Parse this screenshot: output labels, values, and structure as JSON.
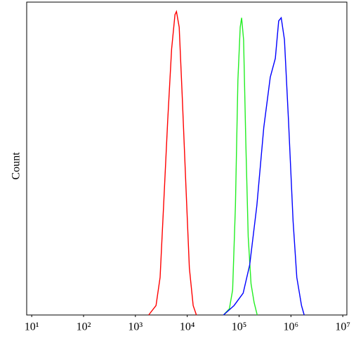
{
  "chart_data": {
    "type": "line",
    "y_label": "Count",
    "xlog": true,
    "xlim": [
      8,
      12000000
    ],
    "ylim": [
      0,
      100
    ],
    "xticks": [
      {
        "value": 10,
        "label": "10¹"
      },
      {
        "value": 100,
        "label": "10²"
      },
      {
        "value": 1000,
        "label": "10³"
      },
      {
        "value": 10000,
        "label": "10⁴"
      },
      {
        "value": 100000,
        "label": "10⁵"
      },
      {
        "value": 1000000,
        "label": "10⁶"
      },
      {
        "value": 10000000,
        "label": "10⁷"
      }
    ],
    "series": [
      {
        "color": "#ff0000",
        "x": [
          1800,
          2500,
          3000,
          3500,
          4200,
          5000,
          5800,
          6200,
          7000,
          8000,
          9500,
          11000,
          13000,
          15000
        ],
        "values": [
          0,
          3,
          12,
          35,
          62,
          85,
          96,
          97,
          92,
          70,
          40,
          15,
          3,
          0
        ]
      },
      {
        "color": "#22ee22",
        "x": [
          50000,
          65000,
          75000,
          85000,
          95000,
          105000,
          112000,
          122000,
          135000,
          150000,
          170000,
          195000,
          224000
        ],
        "values": [
          0,
          2,
          8,
          35,
          75,
          92,
          95,
          88,
          55,
          25,
          10,
          4,
          0
        ]
      },
      {
        "color": "#0000ff",
        "x": [
          50000,
          80000,
          120000,
          160000,
          220000,
          300000,
          400000,
          500000,
          580000,
          650000,
          750000,
          900000,
          1100000,
          1300000,
          1600000,
          1800000
        ],
        "values": [
          0,
          3,
          7,
          16,
          35,
          60,
          76,
          82,
          94,
          95,
          88,
          62,
          30,
          12,
          3,
          0
        ]
      }
    ]
  }
}
